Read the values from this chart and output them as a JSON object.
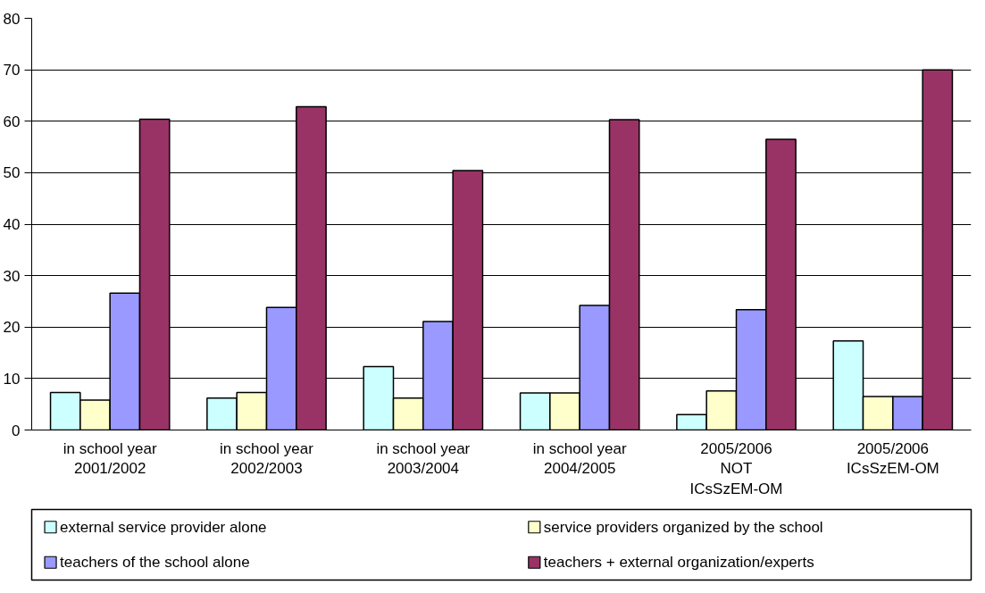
{
  "chart_data": {
    "type": "bar",
    "categories": [
      "in school year\n2001/2002",
      "in school year\n2002/2003",
      "in school year\n2003/2004",
      "in school year\n2004/2005",
      "2005/2006\nNOT\nICsSzEM-OM",
      "2005/2006\nICsSzEM-OM"
    ],
    "series": [
      {
        "name": "external service provider alone",
        "color": "#ccffff",
        "values": [
          7.3,
          6.2,
          12.3,
          7.2,
          3.0,
          17.3
        ]
      },
      {
        "name": "service providers organized by the school",
        "color": "#ffffcc",
        "values": [
          5.8,
          7.3,
          6.2,
          7.2,
          7.6,
          6.5
        ]
      },
      {
        "name": "teachers of the school alone",
        "color": "#9999ff",
        "values": [
          26.6,
          23.8,
          21.1,
          24.2,
          23.4,
          6.5
        ]
      },
      {
        "name": "teachers + external organization/experts",
        "color": "#993366",
        "values": [
          60.4,
          62.8,
          50.4,
          60.3,
          56.5,
          70.0
        ]
      }
    ],
    "ylim": [
      0,
      80
    ],
    "yticks": [
      0,
      10,
      20,
      30,
      40,
      50,
      60,
      70,
      80
    ],
    "grid": "y",
    "legend": "bottom"
  }
}
